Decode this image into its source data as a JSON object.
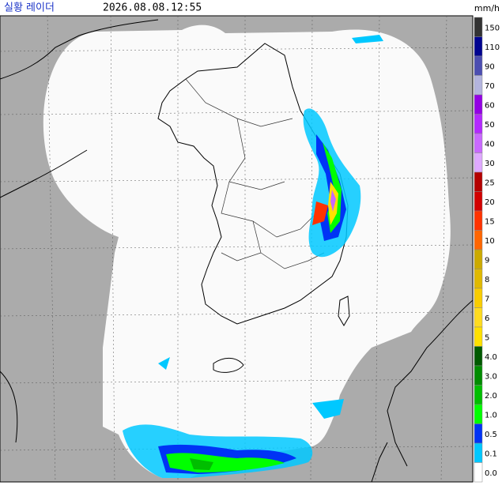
{
  "header": {
    "title": "실황 레이더",
    "time": "2026.08.08.12:55"
  },
  "legend": {
    "unit": "mm/h",
    "items": [
      {
        "label": "150",
        "color": "#333333"
      },
      {
        "label": "110",
        "color": "#000390"
      },
      {
        "label": "90",
        "color": "#4c4eb1"
      },
      {
        "label": "70",
        "color": "#b3b4de"
      },
      {
        "label": "60",
        "color": "#9300e4"
      },
      {
        "label": "50",
        "color": "#b329ff"
      },
      {
        "label": "40",
        "color": "#c969ff"
      },
      {
        "label": "30",
        "color": "#dfa9ff"
      },
      {
        "label": "25",
        "color": "#b40000"
      },
      {
        "label": "20",
        "color": "#d20000"
      },
      {
        "label": "15",
        "color": "#ff3300"
      },
      {
        "label": "10",
        "color": "#ff6600"
      },
      {
        "label": "9",
        "color": "#ccaa00"
      },
      {
        "label": "8",
        "color": "#e0b900"
      },
      {
        "label": "7",
        "color": "#f9cd00"
      },
      {
        "label": "6",
        "color": "#ffdc1f"
      },
      {
        "label": "5",
        "color": "#ffe100"
      },
      {
        "label": "4.0",
        "color": "#005a00"
      },
      {
        "label": "3.0",
        "color": "#008c00"
      },
      {
        "label": "2.0",
        "color": "#00be00"
      },
      {
        "label": "1.0",
        "color": "#00ff00"
      },
      {
        "label": "0.5",
        "color": "#0033f5"
      },
      {
        "label": "0.1",
        "color": "#00c8ff"
      },
      {
        "label": "0.0",
        "color": "#ffffff"
      }
    ]
  }
}
